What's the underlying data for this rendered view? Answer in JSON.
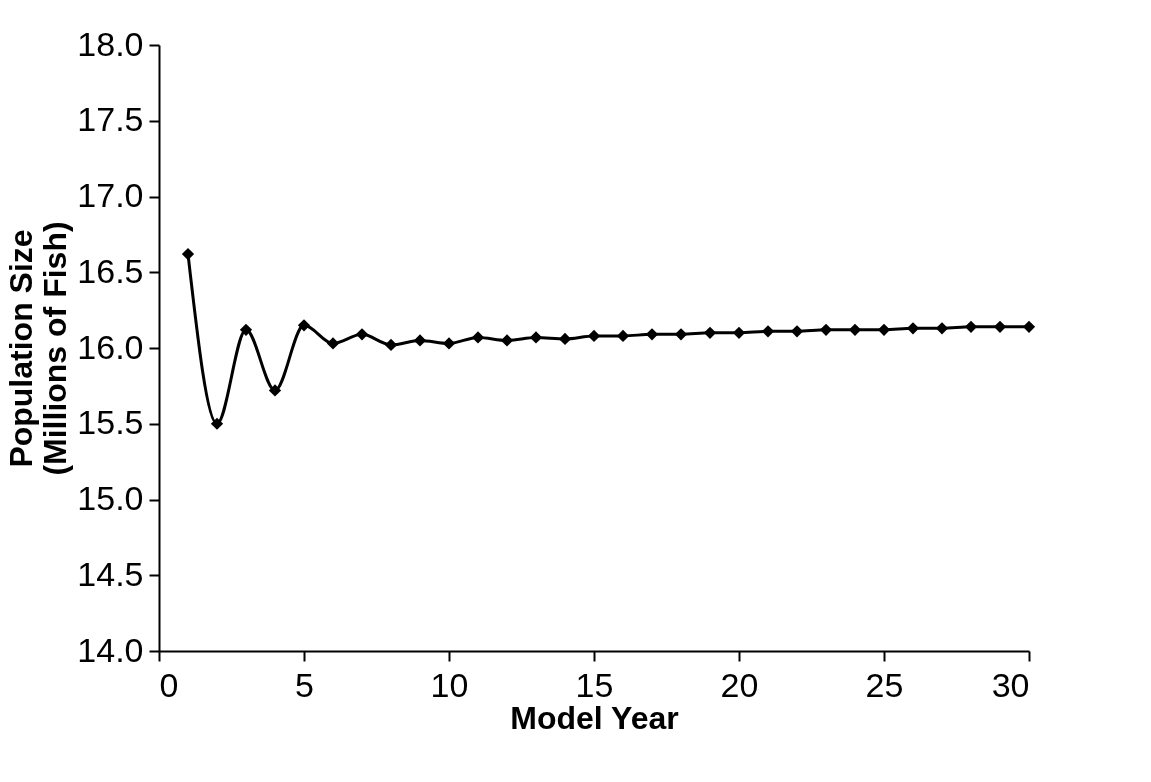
{
  "chart_data": {
    "type": "line",
    "xlabel": "Model Year",
    "ylabel": "Population Size\n(Millions of Fish)",
    "x": [
      1,
      2,
      3,
      4,
      5,
      6,
      7,
      8,
      9,
      10,
      11,
      12,
      13,
      14,
      15,
      16,
      17,
      18,
      19,
      20,
      21,
      22,
      23,
      24,
      25,
      26,
      27,
      28,
      29,
      30
    ],
    "series": [
      {
        "color": "#000000",
        "values": [
          16.62,
          15.5,
          16.12,
          15.72,
          16.15,
          16.03,
          16.09,
          16.02,
          16.05,
          16.03,
          16.07,
          16.05,
          16.07,
          16.06,
          16.08,
          16.08,
          16.09,
          16.09,
          16.1,
          16.1,
          16.11,
          16.11,
          16.12,
          16.12,
          16.12,
          16.13,
          16.13,
          16.14,
          16.14,
          16.14
        ]
      }
    ],
    "xlim": [
      0,
      30
    ],
    "xticks": [
      0,
      5,
      10,
      15,
      20,
      25,
      30
    ],
    "ylim": [
      14,
      18
    ],
    "yticks": [
      {
        "value": 14,
        "label": "14.0"
      },
      {
        "value": 14.5,
        "label": "14.5"
      },
      {
        "value": 15,
        "label": "15.0"
      },
      {
        "value": 15.5,
        "label": "15.5"
      },
      {
        "value": 16,
        "label": "16.0"
      },
      {
        "value": 16.5,
        "label": "16.5"
      },
      {
        "value": 17,
        "label": "17.0"
      },
      {
        "value": 17.5,
        "label": "17.5"
      },
      {
        "value": 18,
        "label": "18.0"
      }
    ],
    "grid": false,
    "legend": false,
    "marker": "diamond",
    "line_style": "solid"
  }
}
